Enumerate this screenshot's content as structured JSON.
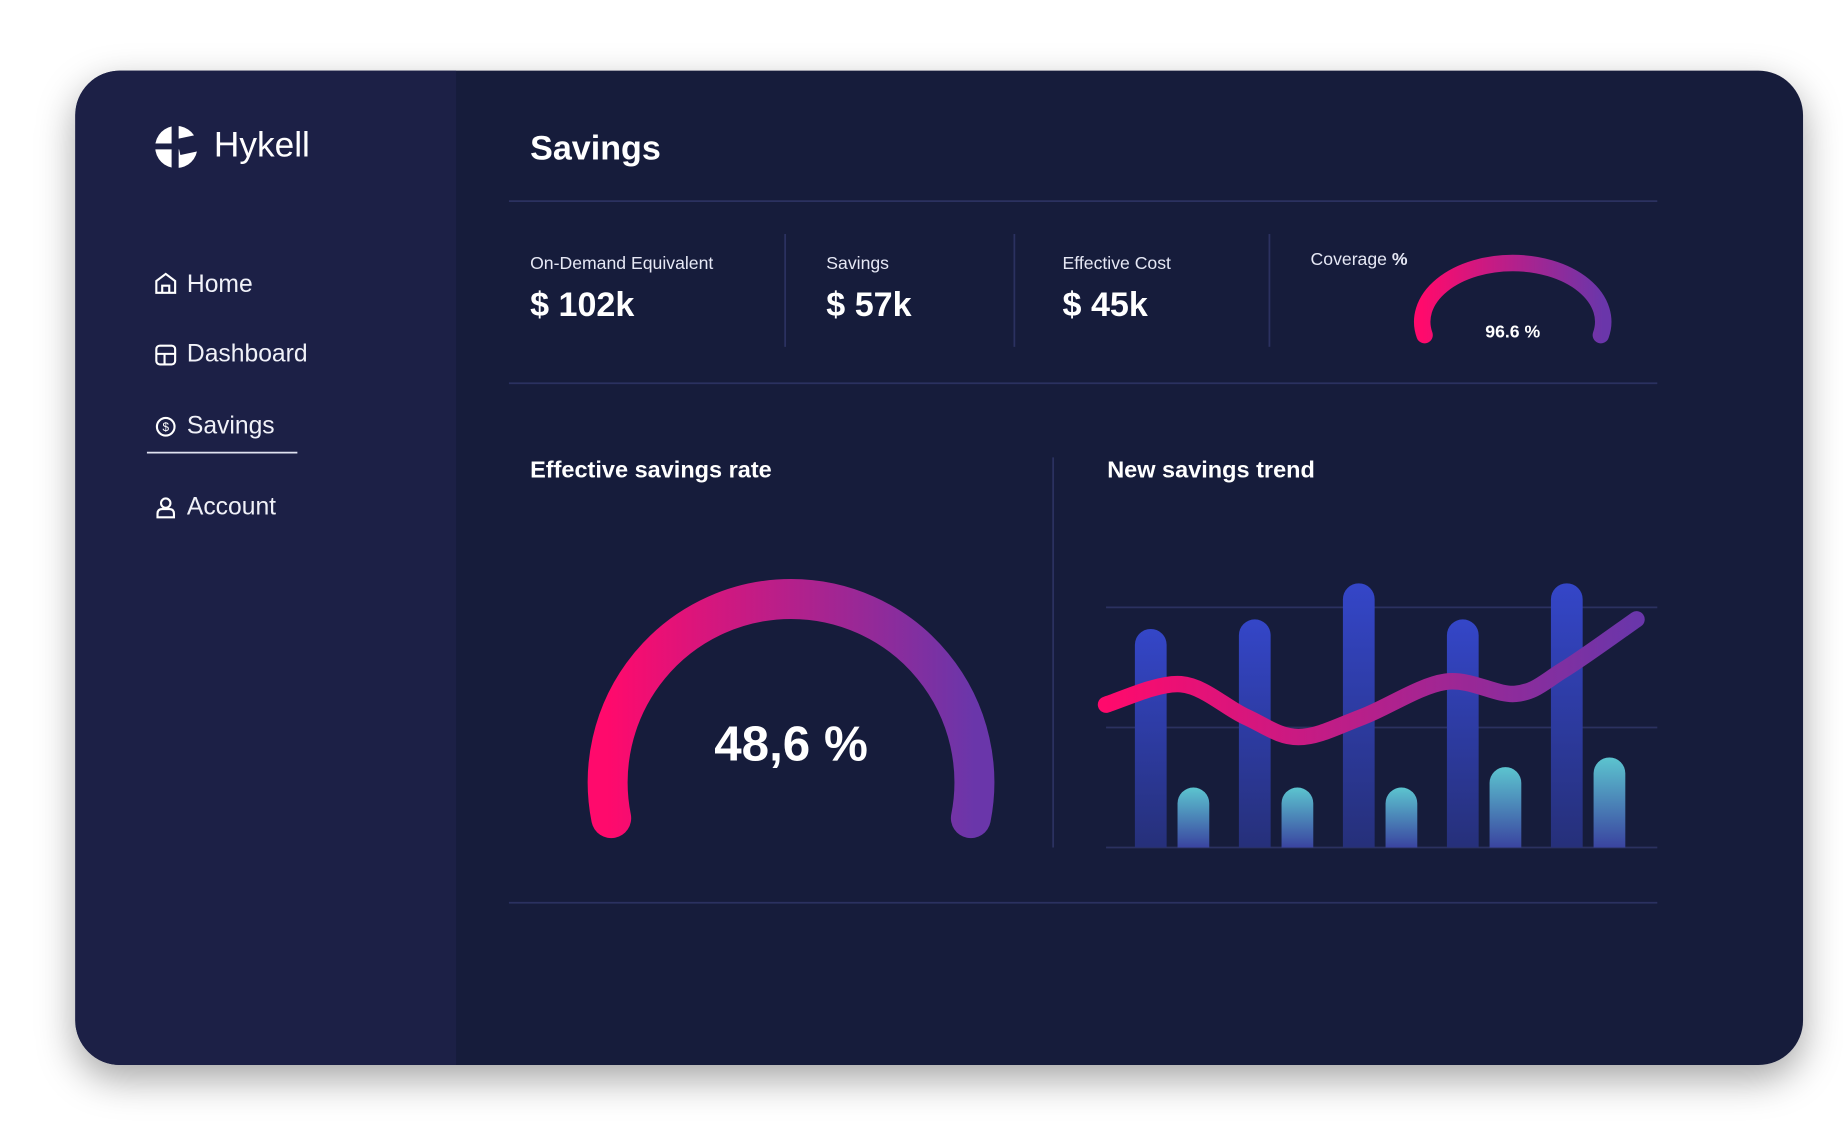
{
  "brand": "Hykell",
  "nav": [
    "Home",
    "Dashboard",
    "Savings",
    "Account"
  ],
  "page_title": "Savings",
  "stats": [
    {
      "label": "On-Demand Equivalent",
      "value": "$ 102k"
    },
    {
      "label": "Savings",
      "value": "$ 57k"
    },
    {
      "label": "Effective Cost",
      "value": "$ 45k"
    }
  ],
  "coverage": {
    "label": "Coverage",
    "unit": "%",
    "value": "96.6 %"
  },
  "rate_panel": {
    "title": "Effective savings rate",
    "value": "48,6 %"
  },
  "chart_data": {
    "type": "bar",
    "title": "New savings trend",
    "categories": [
      null,
      null,
      null,
      null,
      null
    ],
    "series": [
      {
        "color": "#3040c0",
        "values": [
          1.82,
          1.9,
          2.2,
          1.9,
          2.2
        ]
      },
      {
        "color": "#5cc0cc",
        "values": [
          0.5,
          0.5,
          0.5,
          0.67,
          0.75
        ]
      }
    ],
    "line": {
      "color": "#ff0a6c",
      "x": [
        0,
        0.72,
        1.34,
        1.85,
        2.47,
        3.26,
        3.94,
        4.4,
        5.1
      ],
      "values": [
        1.19,
        1.36,
        1.09,
        0.92,
        1.09,
        1.38,
        1.28,
        1.48,
        1.9
      ]
    },
    "xlim": [
      0,
      5.3
    ],
    "ylim": [
      0,
      2.3
    ],
    "yticks": [
      0,
      1,
      2
    ],
    "grid": true
  }
}
